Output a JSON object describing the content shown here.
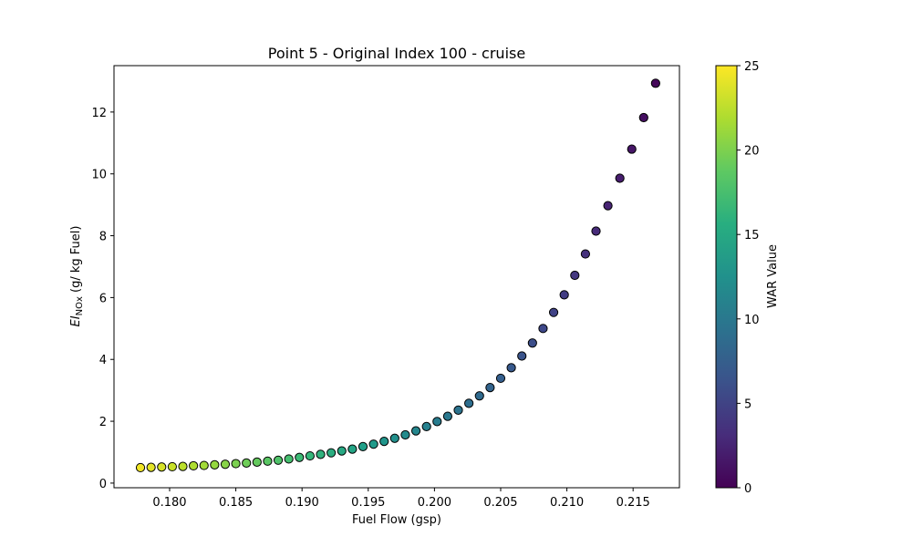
{
  "chart_data": {
    "type": "scatter",
    "title": "Point 5 - Original Index 100 - cruise",
    "xlabel": "Fuel Flow (gsp)",
    "ylabel_main": "EI",
    "ylabel_sub": "NOx",
    "ylabel_rest": " (g/ kg Fuel)",
    "xlim": [
      0.1758,
      0.2185
    ],
    "ylim": [
      -0.15,
      13.5
    ],
    "xticks": [
      "0.180",
      "0.185",
      "0.190",
      "0.195",
      "0.200",
      "0.205",
      "0.210",
      "0.215"
    ],
    "yticks": [
      "0",
      "2",
      "4",
      "6",
      "8",
      "10",
      "12"
    ],
    "grid": false,
    "colorbar": {
      "label": "WAR Value",
      "range": [
        0,
        25
      ],
      "ticks": [
        "0",
        "5",
        "10",
        "15",
        "20",
        "25"
      ],
      "colormap": "viridis"
    },
    "points": {
      "x": [
        0.1778,
        0.1786,
        0.1794,
        0.1802,
        0.181,
        0.1818,
        0.1826,
        0.1834,
        0.1842,
        0.185,
        0.1858,
        0.1866,
        0.1874,
        0.1882,
        0.189,
        0.1898,
        0.1906,
        0.1914,
        0.1922,
        0.193,
        0.1938,
        0.1946,
        0.1954,
        0.1962,
        0.197,
        0.1978,
        0.1986,
        0.1994,
        0.2002,
        0.201,
        0.2018,
        0.2026,
        0.2034,
        0.2042,
        0.205,
        0.2058,
        0.2066,
        0.2074,
        0.2082,
        0.209,
        0.2098,
        0.2106,
        0.2114,
        0.2122,
        0.2131,
        0.214,
        0.2149,
        0.2158,
        0.2167
      ],
      "y": [
        0.5,
        0.51,
        0.52,
        0.53,
        0.54,
        0.56,
        0.57,
        0.59,
        0.61,
        0.63,
        0.65,
        0.68,
        0.71,
        0.74,
        0.78,
        0.83,
        0.88,
        0.93,
        0.98,
        1.04,
        1.1,
        1.18,
        1.26,
        1.35,
        1.45,
        1.56,
        1.69,
        1.83,
        1.99,
        2.16,
        2.36,
        2.58,
        2.82,
        3.09,
        3.39,
        3.73,
        4.11,
        4.53,
        5.0,
        5.52,
        6.09,
        6.72,
        7.41,
        8.15,
        8.97,
        9.86,
        10.8,
        11.82,
        12.93
      ],
      "war": [
        24.5,
        24.0,
        23.5,
        23.0,
        22.5,
        22.0,
        21.5,
        21.0,
        20.5,
        20.0,
        19.5,
        19.0,
        18.5,
        18.0,
        17.5,
        17.0,
        16.5,
        16.0,
        15.5,
        15.0,
        14.5,
        14.0,
        13.5,
        13.0,
        12.5,
        12.0,
        11.5,
        11.0,
        10.5,
        10.0,
        9.5,
        9.0,
        8.5,
        8.0,
        7.5,
        7.0,
        6.5,
        6.0,
        5.5,
        5.0,
        4.5,
        4.0,
        3.5,
        3.0,
        2.5,
        2.0,
        1.5,
        1.0,
        0.5
      ]
    }
  }
}
